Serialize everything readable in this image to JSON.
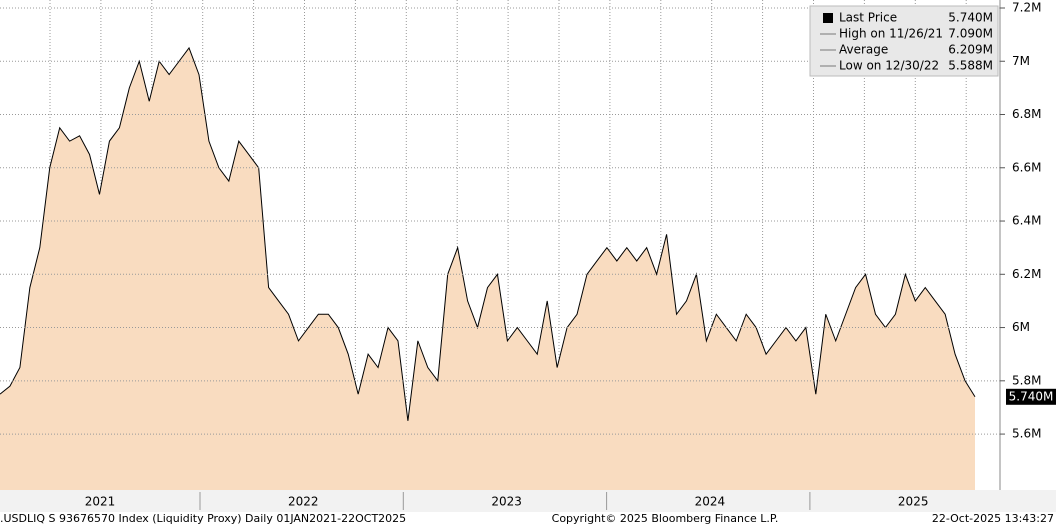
{
  "chart_data": {
    "type": "area",
    "values": [
      5.75,
      5.78,
      5.85,
      6.15,
      6.3,
      6.6,
      6.75,
      6.7,
      6.72,
      6.65,
      6.5,
      6.7,
      6.75,
      6.9,
      7.0,
      6.85,
      7.0,
      6.95,
      7.0,
      7.05,
      6.95,
      6.7,
      6.6,
      6.55,
      6.7,
      6.65,
      6.6,
      6.15,
      6.1,
      6.05,
      5.95,
      6.0,
      6.05,
      6.05,
      6.0,
      5.9,
      5.75,
      5.9,
      5.85,
      6.0,
      5.95,
      5.65,
      5.95,
      5.85,
      5.8,
      6.2,
      6.3,
      6.1,
      6.0,
      6.15,
      6.2,
      5.95,
      6.0,
      5.95,
      5.9,
      6.1,
      5.85,
      6.0,
      6.05,
      6.2,
      6.25,
      6.3,
      6.25,
      6.3,
      6.25,
      6.3,
      6.2,
      6.35,
      6.05,
      6.1,
      6.2,
      5.95,
      6.05,
      6.0,
      5.95,
      6.05,
      6.0,
      5.9,
      5.95,
      6.0,
      5.95,
      6.0,
      5.75,
      6.05,
      5.95,
      6.05,
      6.15,
      6.2,
      6.05,
      6.0,
      6.05,
      6.2,
      6.1,
      6.15,
      6.1,
      6.05,
      5.9,
      5.8,
      5.74
    ],
    "fill_color": "#f9dcc0",
    "line_color": "#000000",
    "ylim": [
      5.39,
      7.23
    ],
    "yticks": [
      {
        "value": 5.6,
        "label": "5.6M"
      },
      {
        "value": 5.8,
        "label": "5.8M"
      },
      {
        "value": 6.0,
        "label": "6M"
      },
      {
        "value": 6.2,
        "label": "6.2M"
      },
      {
        "value": 6.4,
        "label": "6.4M"
      },
      {
        "value": 6.6,
        "label": "6.6M"
      },
      {
        "value": 6.8,
        "label": "6.8M"
      },
      {
        "value": 7.0,
        "label": "7M"
      },
      {
        "value": 7.2,
        "label": "7.2M"
      }
    ],
    "x_labels": [
      "2021",
      "2022",
      "2023",
      "2024",
      "2025"
    ],
    "grid": true,
    "legend": [
      {
        "label": "Last Price",
        "value": 5.74,
        "value_label": "5.740M"
      },
      {
        "label": "High on 11/26/21",
        "value": 7.09,
        "value_label": "7.090M"
      },
      {
        "label": "Average",
        "value": 6.209,
        "value_label": "6.209M"
      },
      {
        "label": "Low on 12/30/22",
        "value": 5.588,
        "value_label": "5.588M"
      }
    ],
    "footer": {
      "left": ".USDLIQ S 93676570 Index (Liquidity Proxy) Daily 01JAN2021-22OCT2025",
      "center": "Copyright© 2025 Bloomberg Finance L.P.",
      "right": "22-Oct-2025 13:43:27"
    }
  }
}
